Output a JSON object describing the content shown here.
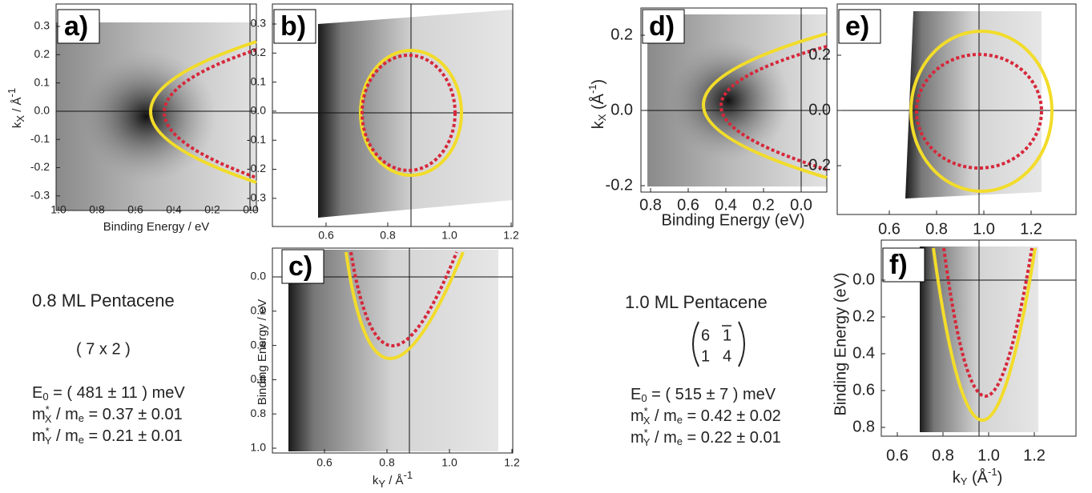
{
  "panels": {
    "a": {
      "label": "a)",
      "xticks": [
        "1.0",
        "0.8",
        "0.6",
        "0.4",
        "0.2",
        "0.0"
      ],
      "yticks": [
        "0.3",
        "0.2",
        "0.1",
        "0.0",
        "-0.1",
        "-0.2",
        "-0.3"
      ],
      "xlabel": "Binding Energy / eV",
      "ylabel": [
        "k",
        "X",
        " / Å",
        "-1"
      ]
    },
    "b": {
      "label": "b)",
      "xticks": [
        "0.6",
        "0.8",
        "1.0",
        "1.2"
      ],
      "yticks": [
        "0.3",
        "0.2",
        "0.1",
        "0.0",
        "-0.1",
        "-0.2",
        "-0.3"
      ]
    },
    "c": {
      "label": "c)",
      "xticks": [
        "0.6",
        "0.8",
        "1.0",
        "1.2"
      ],
      "yticks": [
        "0.0",
        "0.2",
        "0.4",
        "0.6",
        "0.8",
        "1.0"
      ],
      "xlabel": [
        "k",
        "Y",
        " / Å",
        "-1"
      ],
      "ylabel": "Binding Energy / eV"
    },
    "d": {
      "label": "d)",
      "xticks": [
        "0.8",
        "0.6",
        "0.4",
        "0.2",
        "0.0"
      ],
      "yticks": [
        "0.2",
        "0.0",
        "-0.2"
      ],
      "xlabel": "Binding Energy  (eV)",
      "ylabel": [
        "k",
        "X",
        "  (Å",
        "-1",
        ")"
      ]
    },
    "e": {
      "label": "e)",
      "xticks": [
        "0.6",
        "0.8",
        "1.0",
        "1.2"
      ],
      "yticks": [
        "0.2",
        "0.0",
        "-0.2"
      ]
    },
    "f": {
      "label": "f)",
      "xticks": [
        "0.6",
        "0.8",
        "1.0",
        "1.2"
      ],
      "yticks": [
        "0.0",
        "0.2",
        "0.4",
        "0.6",
        "0.8"
      ],
      "xlabel": [
        "k",
        "Y",
        " (Å",
        "-1",
        ")"
      ],
      "ylabel": "Binding Energy  (eV)"
    }
  },
  "left": {
    "title": "0.8 ML Pentacene",
    "cell": "( 7 x 2 )",
    "energy": [
      "E",
      "0",
      " = ( 481 ± 11 ) meV"
    ],
    "mx": [
      "m",
      "*",
      "X",
      " / m",
      "e",
      " = 0.37 ± 0.01"
    ],
    "my": [
      "m",
      "*",
      "Y",
      " / m",
      "e",
      " = 0.21 ± 0.01"
    ]
  },
  "right": {
    "title": "1.0 ML Pentacene",
    "matrix": [
      "6",
      "1",
      "1",
      "4"
    ],
    "energy": [
      "E",
      "0",
      " = ( 515  ± 7 ) meV"
    ],
    "mx": [
      "m",
      "*",
      "X",
      " / m",
      "e",
      " = 0.42 ± 0.02"
    ],
    "my": [
      "m",
      "*",
      "Y",
      " / m",
      "e",
      " = 0.22 ± 0.01"
    ]
  }
}
